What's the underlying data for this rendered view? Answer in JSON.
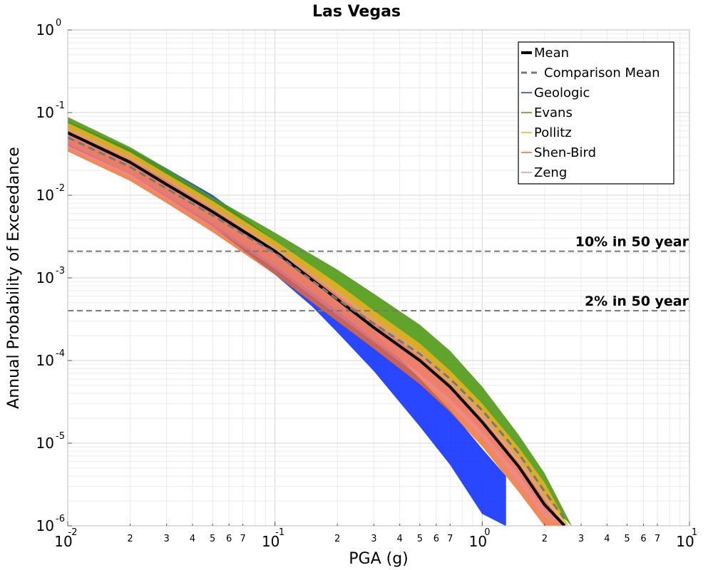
{
  "chart_data": {
    "type": "line",
    "title": "Las Vegas",
    "xlabel": "PGA (g)",
    "ylabel": "Annual Probability of Exceedance",
    "xscale": "log",
    "yscale": "log",
    "xlim": [
      0.01,
      10
    ],
    "ylim": [
      1e-06,
      1
    ],
    "grid": true,
    "legend_position": "top-right",
    "x_major_ticks": [
      {
        "value": 0.01,
        "base": "10",
        "exp": "-2"
      },
      {
        "value": 0.1,
        "base": "10",
        "exp": "-1"
      },
      {
        "value": 1,
        "base": "10",
        "exp": "0"
      },
      {
        "value": 10,
        "base": "10",
        "exp": "1"
      }
    ],
    "x_minor_tick_labels": [
      "2",
      "3",
      "4",
      "5",
      "6",
      "7"
    ],
    "y_major_ticks": [
      {
        "value": 1,
        "base": "10",
        "exp": "0"
      },
      {
        "value": 0.1,
        "base": "10",
        "exp": "-1"
      },
      {
        "value": 0.01,
        "base": "10",
        "exp": "-2"
      },
      {
        "value": 0.001,
        "base": "10",
        "exp": "-3"
      },
      {
        "value": 0.0001,
        "base": "10",
        "exp": "-4"
      },
      {
        "value": 1e-05,
        "base": "10",
        "exp": "-5"
      },
      {
        "value": 1e-06,
        "base": "10",
        "exp": "-6"
      }
    ],
    "reference_lines": [
      {
        "label": "10% in 50 year",
        "y": 0.0021
      },
      {
        "label": "2% in 50 year",
        "y": 0.0004
      }
    ],
    "lines": [
      {
        "name": "Mean",
        "color": "#000000",
        "style": "solid",
        "x": [
          0.01,
          0.02,
          0.03,
          0.05,
          0.07,
          0.1,
          0.2,
          0.3,
          0.5,
          0.7,
          1,
          1.5,
          2,
          2.5
        ],
        "y": [
          0.057,
          0.025,
          0.0135,
          0.0063,
          0.0037,
          0.0021,
          0.00055,
          0.00025,
          0.0001,
          4.8e-05,
          1.8e-05,
          5.2e-06,
          1.8e-06,
          1e-06
        ]
      },
      {
        "name": "Comparison Mean",
        "color": "#777777",
        "style": "dashed",
        "x": [
          0.01,
          0.02,
          0.03,
          0.05,
          0.07,
          0.1,
          0.2,
          0.3,
          0.5,
          0.7,
          1,
          1.5,
          2,
          2.5
        ],
        "y": [
          0.05,
          0.022,
          0.012,
          0.0057,
          0.0034,
          0.002,
          0.00055,
          0.00028,
          0.00012,
          6e-05,
          2.5e-05,
          7.5e-06,
          2.6e-06,
          1.2e-06
        ]
      }
    ],
    "bands": [
      {
        "name": "Geologic",
        "color": "#1133ff",
        "opacity": 0.9,
        "x": [
          0.01,
          0.02,
          0.03,
          0.05,
          0.1,
          0.15,
          0.2,
          0.3,
          0.5,
          0.7,
          1,
          1.3
        ],
        "upper": [
          0.078,
          0.036,
          0.021,
          0.01,
          0.0028,
          0.0012,
          0.0006,
          0.00022,
          6e-05,
          2.5e-05,
          8.5e-06,
          4e-06
        ],
        "lower": [
          0.04,
          0.018,
          0.0095,
          0.0042,
          0.0011,
          0.00046,
          0.00022,
          7.5e-05,
          1.6e-05,
          5.5e-06,
          1.4e-06,
          1e-06
        ]
      },
      {
        "name": "Evans",
        "color": "#4f9a14",
        "opacity": 0.9,
        "x": [
          0.01,
          0.02,
          0.03,
          0.05,
          0.1,
          0.2,
          0.3,
          0.5,
          0.7,
          1,
          1.5,
          2,
          2.7
        ],
        "upper": [
          0.088,
          0.038,
          0.021,
          0.0095,
          0.0035,
          0.00125,
          0.00064,
          0.00027,
          0.00013,
          4.8e-05,
          1.25e-05,
          4.3e-06,
          1e-06
        ],
        "lower": [
          0.045,
          0.02,
          0.011,
          0.005,
          0.0016,
          0.00045,
          0.00022,
          0.0001,
          5e-05,
          2.1e-05,
          6.2e-06,
          2.2e-06,
          1e-06
        ]
      },
      {
        "name": "Pollitz",
        "color": "#f0b21b",
        "opacity": 0.85,
        "x": [
          0.01,
          0.02,
          0.03,
          0.05,
          0.1,
          0.2,
          0.3,
          0.5,
          0.7,
          1,
          1.5,
          2,
          2.6
        ],
        "upper": [
          0.075,
          0.033,
          0.018,
          0.0085,
          0.0028,
          0.00085,
          0.0004,
          0.00016,
          7.5e-05,
          3e-05,
          8.8e-06,
          3.3e-06,
          1e-06
        ],
        "lower": [
          0.042,
          0.018,
          0.0098,
          0.0045,
          0.0014,
          0.0004,
          0.00018,
          7e-05,
          3.4e-05,
          1.4e-05,
          4.2e-06,
          1.6e-06,
          1e-06
        ]
      },
      {
        "name": "Shen-Bird",
        "color": "#ef6b2e",
        "opacity": 0.8,
        "x": [
          0.01,
          0.02,
          0.03,
          0.05,
          0.1,
          0.2,
          0.3,
          0.5,
          0.7,
          1,
          1.5,
          2,
          2.5
        ],
        "upper": [
          0.06,
          0.027,
          0.015,
          0.0068,
          0.0022,
          0.00062,
          0.00029,
          0.00011,
          5.2e-05,
          2e-05,
          5.8e-06,
          2.1e-06,
          1e-06
        ],
        "lower": [
          0.034,
          0.015,
          0.0081,
          0.0036,
          0.0011,
          0.0003,
          0.00014,
          5.2e-05,
          2.4e-05,
          9.2e-06,
          2.6e-06,
          1e-06,
          1e-06
        ]
      },
      {
        "name": "Zeng",
        "color": "#e88ad8",
        "opacity": 0.35,
        "x": [
          0.01,
          0.02,
          0.03,
          0.05,
          0.1,
          0.2,
          0.3,
          0.5,
          0.7,
          1,
          1.5,
          2,
          2.5
        ],
        "upper": [
          0.065,
          0.029,
          0.016,
          0.0074,
          0.0024,
          0.0007,
          0.00033,
          0.00013,
          6e-05,
          2.4e-05,
          6.8e-06,
          2.4e-06,
          1e-06
        ],
        "lower": [
          0.038,
          0.017,
          0.0092,
          0.0042,
          0.0013,
          0.00036,
          0.00017,
          6.4e-05,
          3e-05,
          1.2e-05,
          3.4e-06,
          1.3e-06,
          1e-06
        ]
      }
    ],
    "legend": [
      {
        "label": "Mean",
        "color": "#000000",
        "style": "thick-solid"
      },
      {
        "label": "Comparison Mean",
        "color": "#777777",
        "style": "dashed"
      },
      {
        "label": "Geologic",
        "color": "#1133ff",
        "style": "solid"
      },
      {
        "label": "Evans",
        "color": "#4f9a14",
        "style": "solid"
      },
      {
        "label": "Pollitz",
        "color": "#f0b21b",
        "style": "solid"
      },
      {
        "label": "Shen-Bird",
        "color": "#ef6b2e",
        "style": "solid"
      },
      {
        "label": "Zeng",
        "color": "#e88ad8",
        "style": "solid"
      }
    ]
  }
}
